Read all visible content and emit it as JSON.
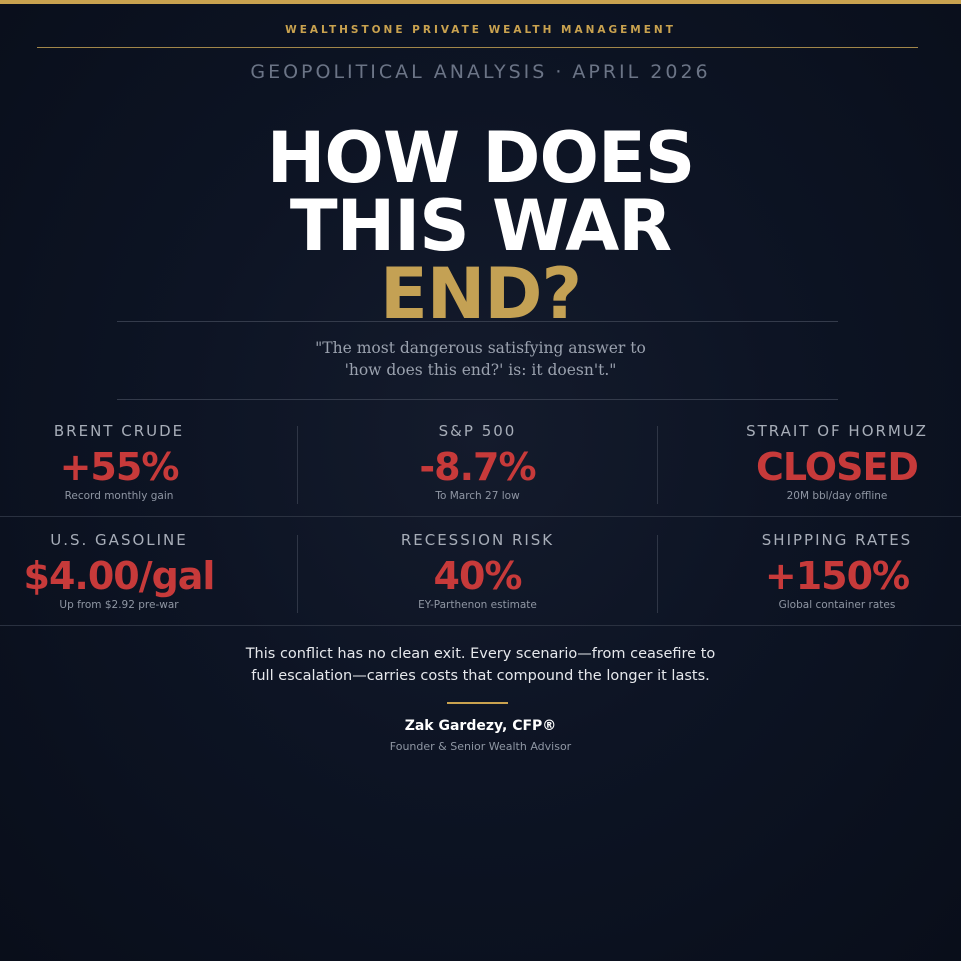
{
  "header": {
    "firm_name": "WEALTHSTONE PRIVATE WEALTH MANAGEMENT",
    "section": "GEOPOLITICAL ANALYSIS",
    "separator": "·",
    "date": "APRIL 2026"
  },
  "headline": {
    "line1": "HOW DOES",
    "line2": "THIS WAR",
    "line3": "END?"
  },
  "quote": {
    "line1": "\"The most dangerous satisfying answer to",
    "line2": "'how does this end?' is: it doesn't.\""
  },
  "stats": [
    {
      "label": "BRENT CRUDE",
      "value": "+55%",
      "note": "Record monthly gain"
    },
    {
      "label": "S&P 500",
      "value": "-8.7%",
      "note": "To March 27 low"
    },
    {
      "label": "STRAIT OF HORMUZ",
      "value": "CLOSED",
      "note": "20M bbl/day offline"
    },
    {
      "label": "U.S. GASOLINE",
      "value": "$4.00/gal",
      "note": "Up from $2.92 pre-war"
    },
    {
      "label": "RECESSION RISK",
      "value": "40%",
      "note": "EY-Parthenon estimate"
    },
    {
      "label": "SHIPPING RATES",
      "value": "+150%",
      "note": "Global container rates"
    }
  ],
  "summary": {
    "line1": "This conflict has no clean exit. Every scenario—from ceasefire to",
    "line2": "full escalation—carries costs that compound the longer it lasts."
  },
  "author": {
    "name": "Zak Gardezy, CFP®",
    "title": "Founder & Senior Wealth Advisor"
  },
  "colors": {
    "gold_accent": "#c9a24f",
    "stat_red": "#c73a3a",
    "background": "#0b1120"
  }
}
